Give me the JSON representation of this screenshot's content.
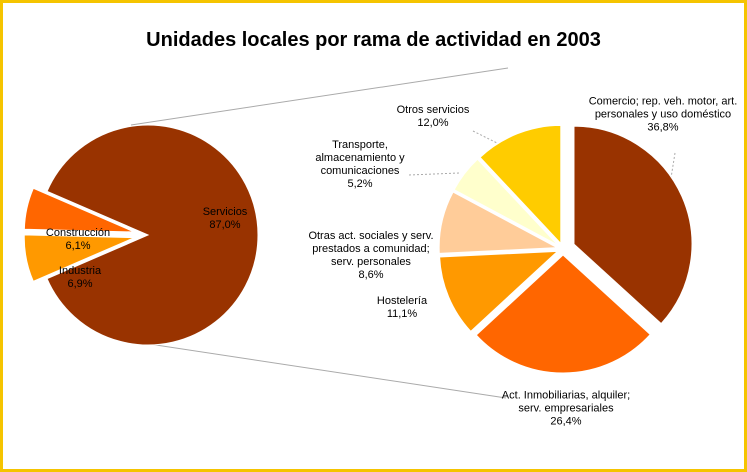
{
  "chart_data": {
    "type": "pie",
    "title": "Unidades locales por rama de actividad en 2003",
    "categories": [
      "Servicios",
      "Industria",
      "Construcción"
    ],
    "values": [
      87.0,
      6.9,
      6.1
    ],
    "value_labels": [
      "87,0%",
      "6,9%",
      "6,1%"
    ],
    "colors": [
      "#993300",
      "#ff9900",
      "#ff6600"
    ],
    "breakdown": {
      "categories": [
        "Comercio; rep. veh. motor, art. personales y uso doméstico",
        "Act. Inmobiliarias, alquiler; serv. empresariales",
        "Hostelería",
        "Otras act. sociales y serv. prestados a comunidad; serv. personales",
        "Transporte, almacenamiento y comunicaciones",
        "Otros servicios"
      ],
      "values": [
        36.8,
        26.4,
        11.1,
        8.6,
        5.2,
        12.0
      ],
      "value_labels": [
        "36,8%",
        "26,4%",
        "11,1%",
        "8,6%",
        "5,2%",
        "12,0%"
      ],
      "colors": [
        "#993300",
        "#ff6600",
        "#ff9900",
        "#ffcc99",
        "#ffffcc",
        "#ffcc00"
      ]
    }
  }
}
